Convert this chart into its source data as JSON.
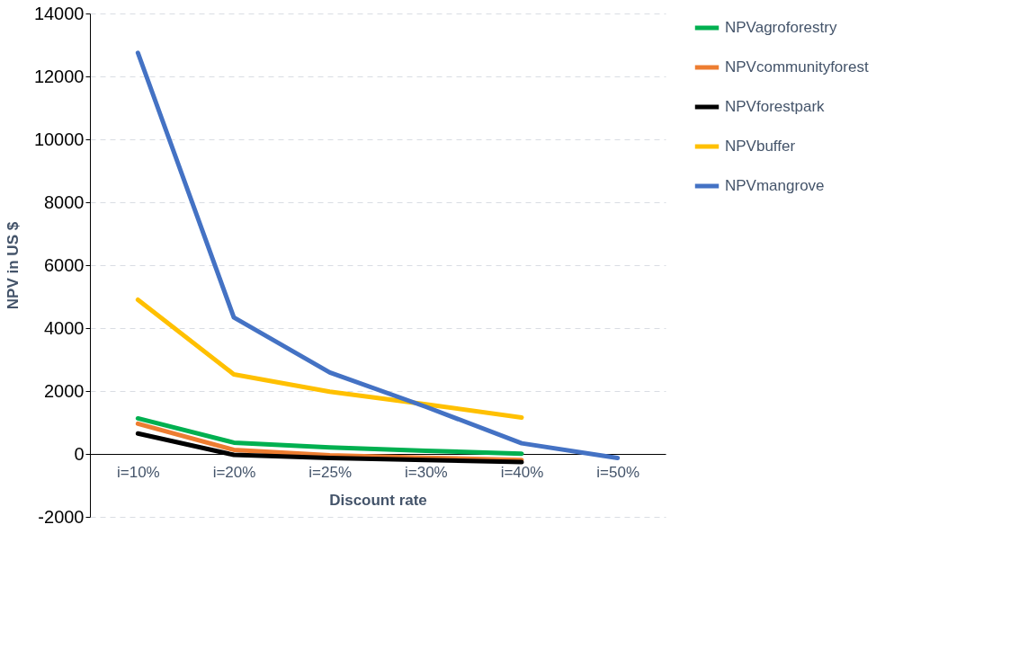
{
  "chart_data": {
    "type": "line",
    "xlabel": "Discount rate",
    "ylabel": "NPV in US $",
    "categories": [
      "i=10%",
      "i=20%",
      "i=25%",
      "i=30%",
      "i=40%",
      "i=50%"
    ],
    "series": [
      {
        "name": "NPVagroforestry",
        "color": "#00b050",
        "values": [
          1130,
          360,
          210,
          100,
          10,
          null
        ]
      },
      {
        "name": "NPVcommunityforest",
        "color": "#ed7d31",
        "values": [
          960,
          130,
          -40,
          -120,
          -190,
          null
        ]
      },
      {
        "name": "NPVforestpark",
        "color": "#000000",
        "values": [
          650,
          -30,
          -130,
          -190,
          -260,
          null
        ]
      },
      {
        "name": "NPVbuffer",
        "color": "#ffc000",
        "values": [
          4900,
          2530,
          1980,
          1580,
          1160,
          null
        ]
      },
      {
        "name": "NPVmangrove",
        "color": "#4472c4",
        "values": [
          12750,
          4340,
          2590,
          1500,
          340,
          -130
        ]
      }
    ],
    "ylim": [
      -2000,
      14000
    ],
    "yticks": [
      -2000,
      0,
      2000,
      4000,
      6000,
      8000,
      10000,
      12000,
      14000
    ],
    "grid": "y",
    "legend": "right",
    "marker": "none",
    "line_style": "solid"
  }
}
